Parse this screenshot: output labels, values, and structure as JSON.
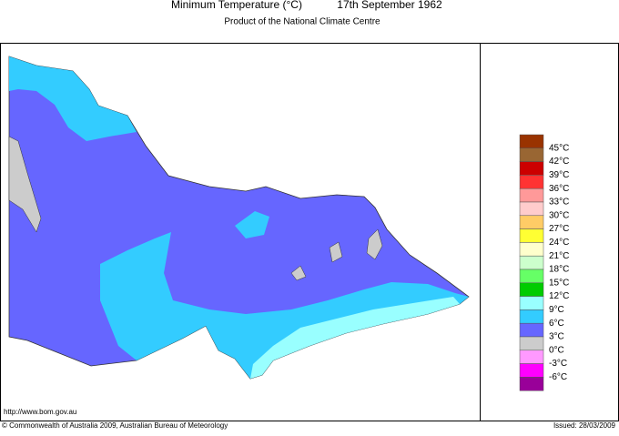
{
  "header": {
    "title": "Minimum Temperature (°C)",
    "date": "17th September 1962",
    "subtitle": "Product of the National Climate Centre"
  },
  "legend": {
    "labels": [
      "45°C",
      "42°C",
      "39°C",
      "36°C",
      "33°C",
      "30°C",
      "27°C",
      "24°C",
      "21°C",
      "18°C",
      "15°C",
      "12°C",
      "9°C",
      "6°C",
      "3°C",
      "0°C",
      "-3°C",
      "-6°C"
    ],
    "colors": [
      "#993300",
      "#996633",
      "#cc0000",
      "#ff3333",
      "#ff9999",
      "#ffcccc",
      "#ffcc66",
      "#ffff33",
      "#ffffcc",
      "#ccffcc",
      "#66ff66",
      "#00cc00",
      "#99ffff",
      "#33ccff",
      "#6666ff",
      "#cccccc",
      "#ff99ff",
      "#ff00ff",
      "#990099"
    ]
  },
  "footer": {
    "url": "http://www.bom.gov.au",
    "copyright": "© Commonwealth of Australia 2009, Australian Bureau of Meteorology",
    "issued": "Issued: 28/03/2009"
  }
}
